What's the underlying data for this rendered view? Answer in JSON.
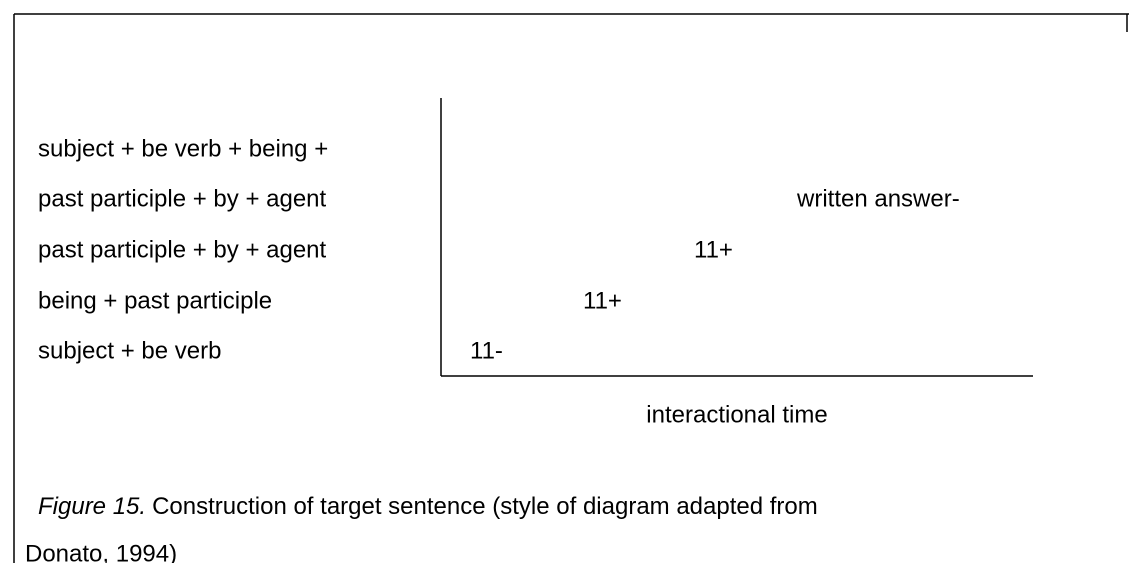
{
  "diagram": {
    "rows": [
      {
        "label": "subject + be verb + being +",
        "entry": null
      },
      {
        "label": "past participle + by + agent",
        "entry": "written answer-"
      },
      {
        "label": "past participle + by + agent",
        "entry": "11+"
      },
      {
        "label": "being + past participle",
        "entry": "11+"
      },
      {
        "label": "subject + be verb",
        "entry": "11-"
      }
    ],
    "x_axis_label": "interactional time"
  },
  "caption": {
    "label": "Figure 15.",
    "line1": "Construction of target sentence (style of diagram adapted from",
    "line2": "Donato, 1994)"
  }
}
